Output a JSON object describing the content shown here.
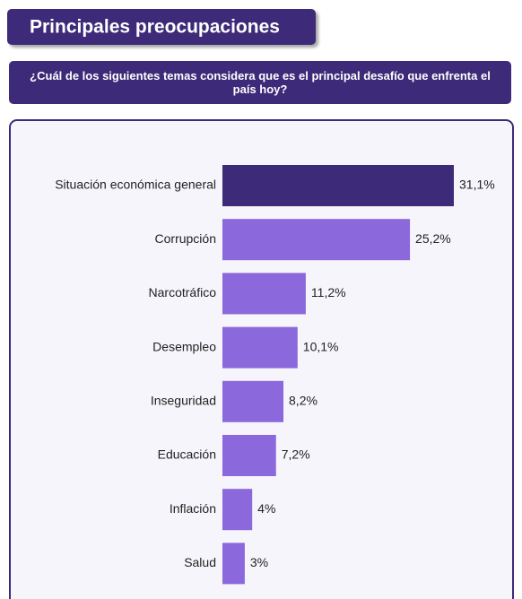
{
  "chart_data": {
    "type": "barh",
    "title": "Principales preocupaciones",
    "subtitle": "¿Cuál de los siguientes temas considera que es el principal desafío que enfrenta el país hoy?",
    "categories": [
      "Situación económica general",
      "Corrupción",
      "Narcotráfico",
      "Desempleo",
      "Inseguridad",
      "Educación",
      "Inflación",
      "Salud"
    ],
    "values": [
      31.1,
      25.2,
      11.2,
      10.1,
      8.2,
      7.2,
      4,
      3
    ],
    "value_labels": [
      "31,1%",
      "25,2%",
      "11,2%",
      "10,1%",
      "8,2%",
      "7,2%",
      "4%",
      "3%"
    ],
    "colors": [
      "#3d2a78",
      "#8b68dc",
      "#8b68dc",
      "#8b68dc",
      "#8b68dc",
      "#8b68dc",
      "#8b68dc",
      "#8b68dc"
    ]
  }
}
